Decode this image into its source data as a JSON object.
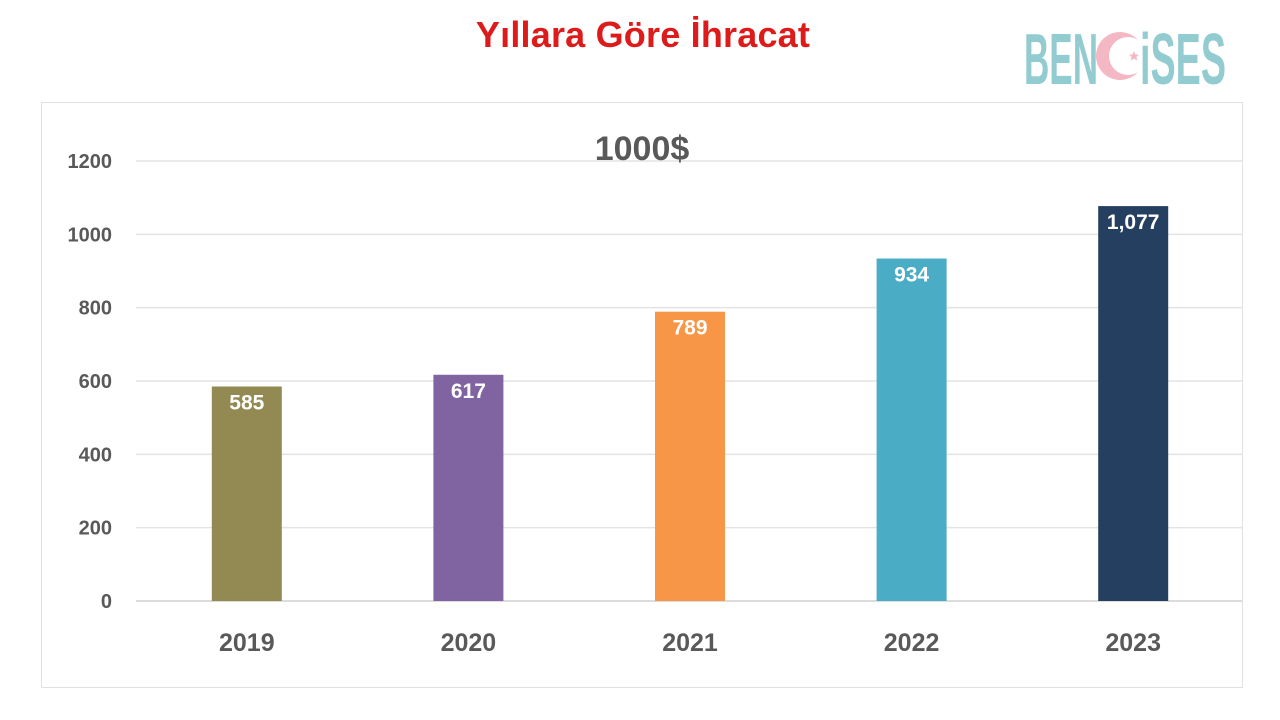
{
  "page": {
    "title": "Yıllara Göre İhracat",
    "title_color": "#dd1b1b"
  },
  "logo": {
    "text_left": "BEN",
    "text_right": "iSES",
    "color": "#92ccd1",
    "crescent_color": "#f3b8c4"
  },
  "chart_data": {
    "type": "bar",
    "title": "1000$",
    "xlabel": "",
    "ylabel": "",
    "categories": [
      "2019",
      "2020",
      "2021",
      "2022",
      "2023"
    ],
    "values": [
      585,
      617,
      789,
      934,
      1077
    ],
    "data_labels": [
      "585",
      "617",
      "789",
      "934",
      "1,077"
    ],
    "colors": [
      "#938953",
      "#8064a2",
      "#f79646",
      "#4bacc6",
      "#243f60"
    ],
    "ylim": [
      0,
      1200
    ],
    "yticks": [
      0,
      200,
      400,
      600,
      800,
      1000,
      1200
    ],
    "grid": true,
    "legend": "none"
  }
}
